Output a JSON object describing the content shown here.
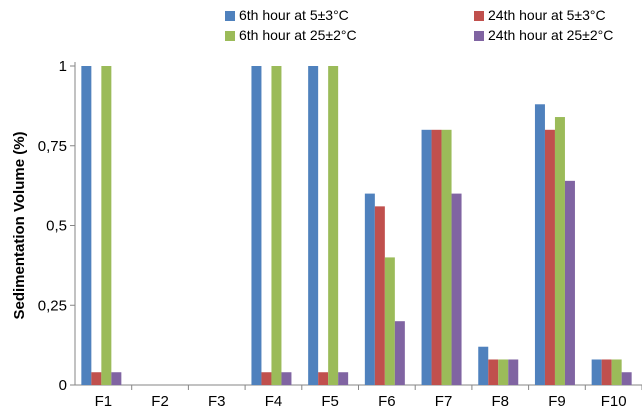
{
  "chart_data": {
    "type": "bar",
    "title": "",
    "xlabel": "",
    "ylabel": "Sedimentation Volume (%)",
    "ylim": [
      0,
      1
    ],
    "yticks": [
      "0",
      "0,25",
      "0,5",
      "0,75",
      "1"
    ],
    "ytick_values": [
      0,
      0.25,
      0.5,
      0.75,
      1
    ],
    "grid": false,
    "legend_position": "top-right",
    "categories": [
      "F1",
      "F2",
      "F3",
      "F4",
      "F5",
      "F6",
      "F7",
      "F8",
      "F9",
      "F10"
    ],
    "series": [
      {
        "name": "6th hour at 5±3°C",
        "color": "#4f81bd",
        "values": [
          1,
          0,
          0,
          1,
          1,
          0.6,
          0.8,
          0.12,
          0.88,
          0.08
        ]
      },
      {
        "name": "24th hour at 5±3°C",
        "color": "#c0504d",
        "values": [
          0.04,
          0,
          0,
          0.04,
          0.04,
          0.56,
          0.8,
          0.08,
          0.8,
          0.08
        ]
      },
      {
        "name": "6th hour at 25±2°C",
        "color": "#9bbb59",
        "values": [
          1,
          0,
          0,
          1,
          1,
          0.4,
          0.8,
          0.08,
          0.84,
          0.08
        ]
      },
      {
        "name": "24th hour at 25±2°C",
        "color": "#8064a2",
        "values": [
          0.04,
          0,
          0,
          0.04,
          0.04,
          0.2,
          0.6,
          0.08,
          0.64,
          0.04
        ]
      }
    ]
  }
}
